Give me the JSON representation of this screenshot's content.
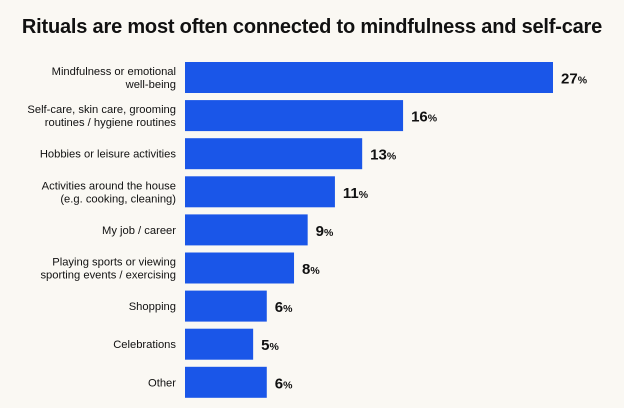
{
  "chart_data": {
    "type": "bar",
    "orientation": "horizontal",
    "title": "Rituals are most often connected to mindfulness and self-care",
    "categories": [
      [
        "Mindfulness or emotional",
        "well-being"
      ],
      [
        "Self-care, skin care, grooming",
        "routines / hygiene routines"
      ],
      [
        "Hobbies or leisure activities"
      ],
      [
        "Activities around the house",
        "(e.g. cooking, cleaning)"
      ],
      [
        "My job / career"
      ],
      [
        "Playing sports or viewing",
        "sporting events / exercising"
      ],
      [
        "Shopping"
      ],
      [
        "Celebrations"
      ],
      [
        "Other"
      ]
    ],
    "values": [
      27,
      16,
      13,
      11,
      9,
      8,
      6,
      5,
      6
    ],
    "unit": "%",
    "bar_color": "#1a56e8",
    "xlim": [
      0,
      27
    ],
    "grid": false,
    "legend": "none"
  }
}
